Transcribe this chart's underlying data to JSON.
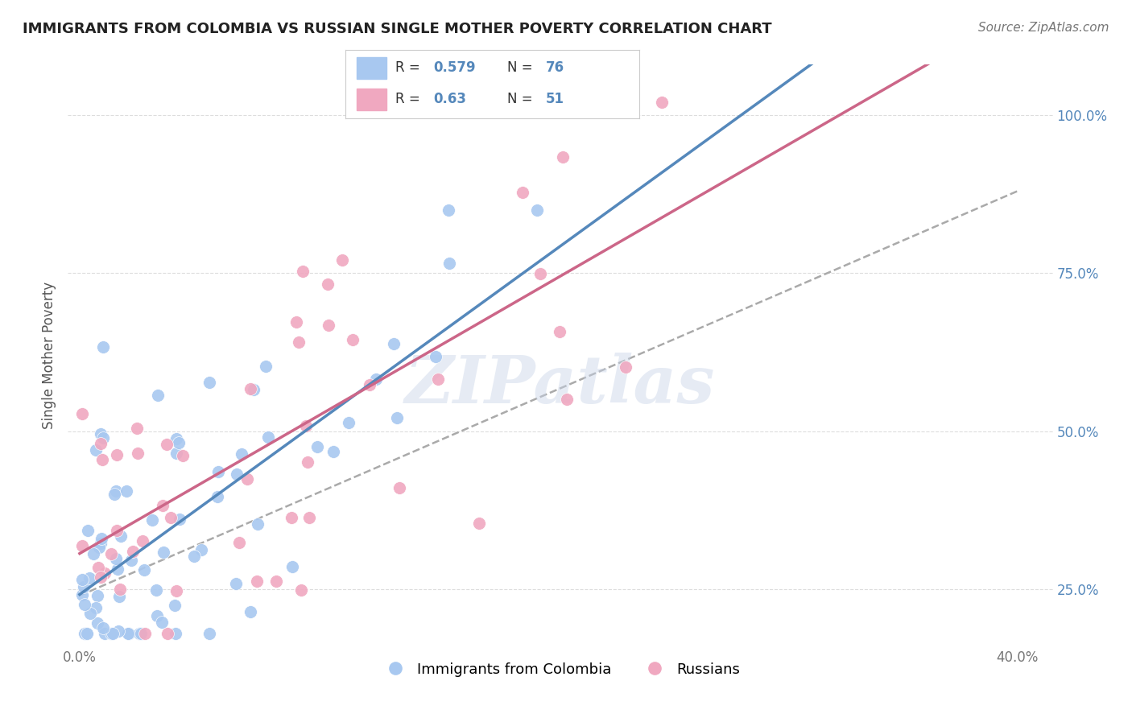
{
  "title": "IMMIGRANTS FROM COLOMBIA VS RUSSIAN SINGLE MOTHER POVERTY CORRELATION CHART",
  "source_text": "Source: ZipAtlas.com",
  "ylabel": "Single Mother Poverty",
  "watermark": "ZIPatlas",
  "xlim": [
    -0.005,
    0.415
  ],
  "ylim": [
    0.16,
    1.08
  ],
  "xtick_vals": [
    0.0,
    0.1,
    0.2,
    0.3,
    0.4
  ],
  "xtick_labels": [
    "0.0%",
    "",
    "",
    "",
    "40.0%"
  ],
  "ytick_vals": [
    0.25,
    0.5,
    0.75,
    1.0
  ],
  "ytick_labels": [
    "25.0%",
    "50.0%",
    "75.0%",
    "100.0%"
  ],
  "r_colombia": 0.579,
  "n_colombia": 76,
  "r_russians": 0.63,
  "n_russians": 51,
  "color_colombia": "#a8c8f0",
  "color_russians": "#f0a8c0",
  "color_colombia_line": "#5588bb",
  "color_russians_line": "#cc6688",
  "color_yaxis": "#5588bb",
  "color_dashed": "#aaaaaa",
  "legend_label_colombia": "Immigrants from Colombia",
  "legend_label_russians": "Russians",
  "title_fontsize": 13,
  "source_fontsize": 11,
  "axis_fontsize": 12
}
